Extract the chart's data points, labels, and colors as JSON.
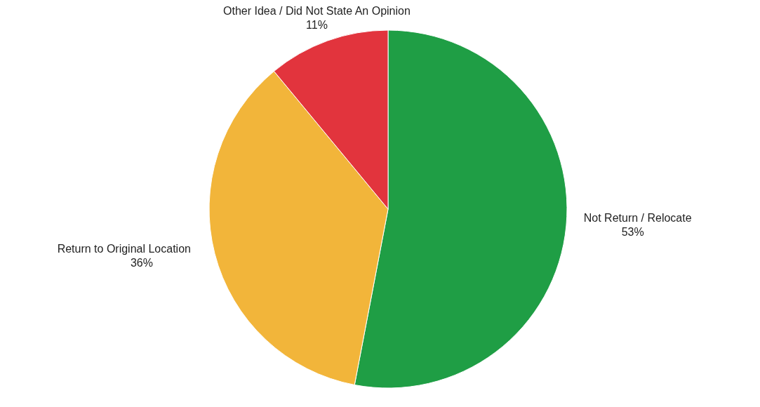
{
  "chart_data": {
    "type": "pie",
    "categories": [
      "Not Return / Relocate",
      "Return to Original Location",
      "Other Idea / Did Not State An Opinion"
    ],
    "values": [
      53,
      36,
      11
    ],
    "colors": [
      "#1f9e45",
      "#f2b53a",
      "#e2343d"
    ],
    "value_labels": [
      "53%",
      "36%",
      "11%"
    ],
    "legend": false
  }
}
